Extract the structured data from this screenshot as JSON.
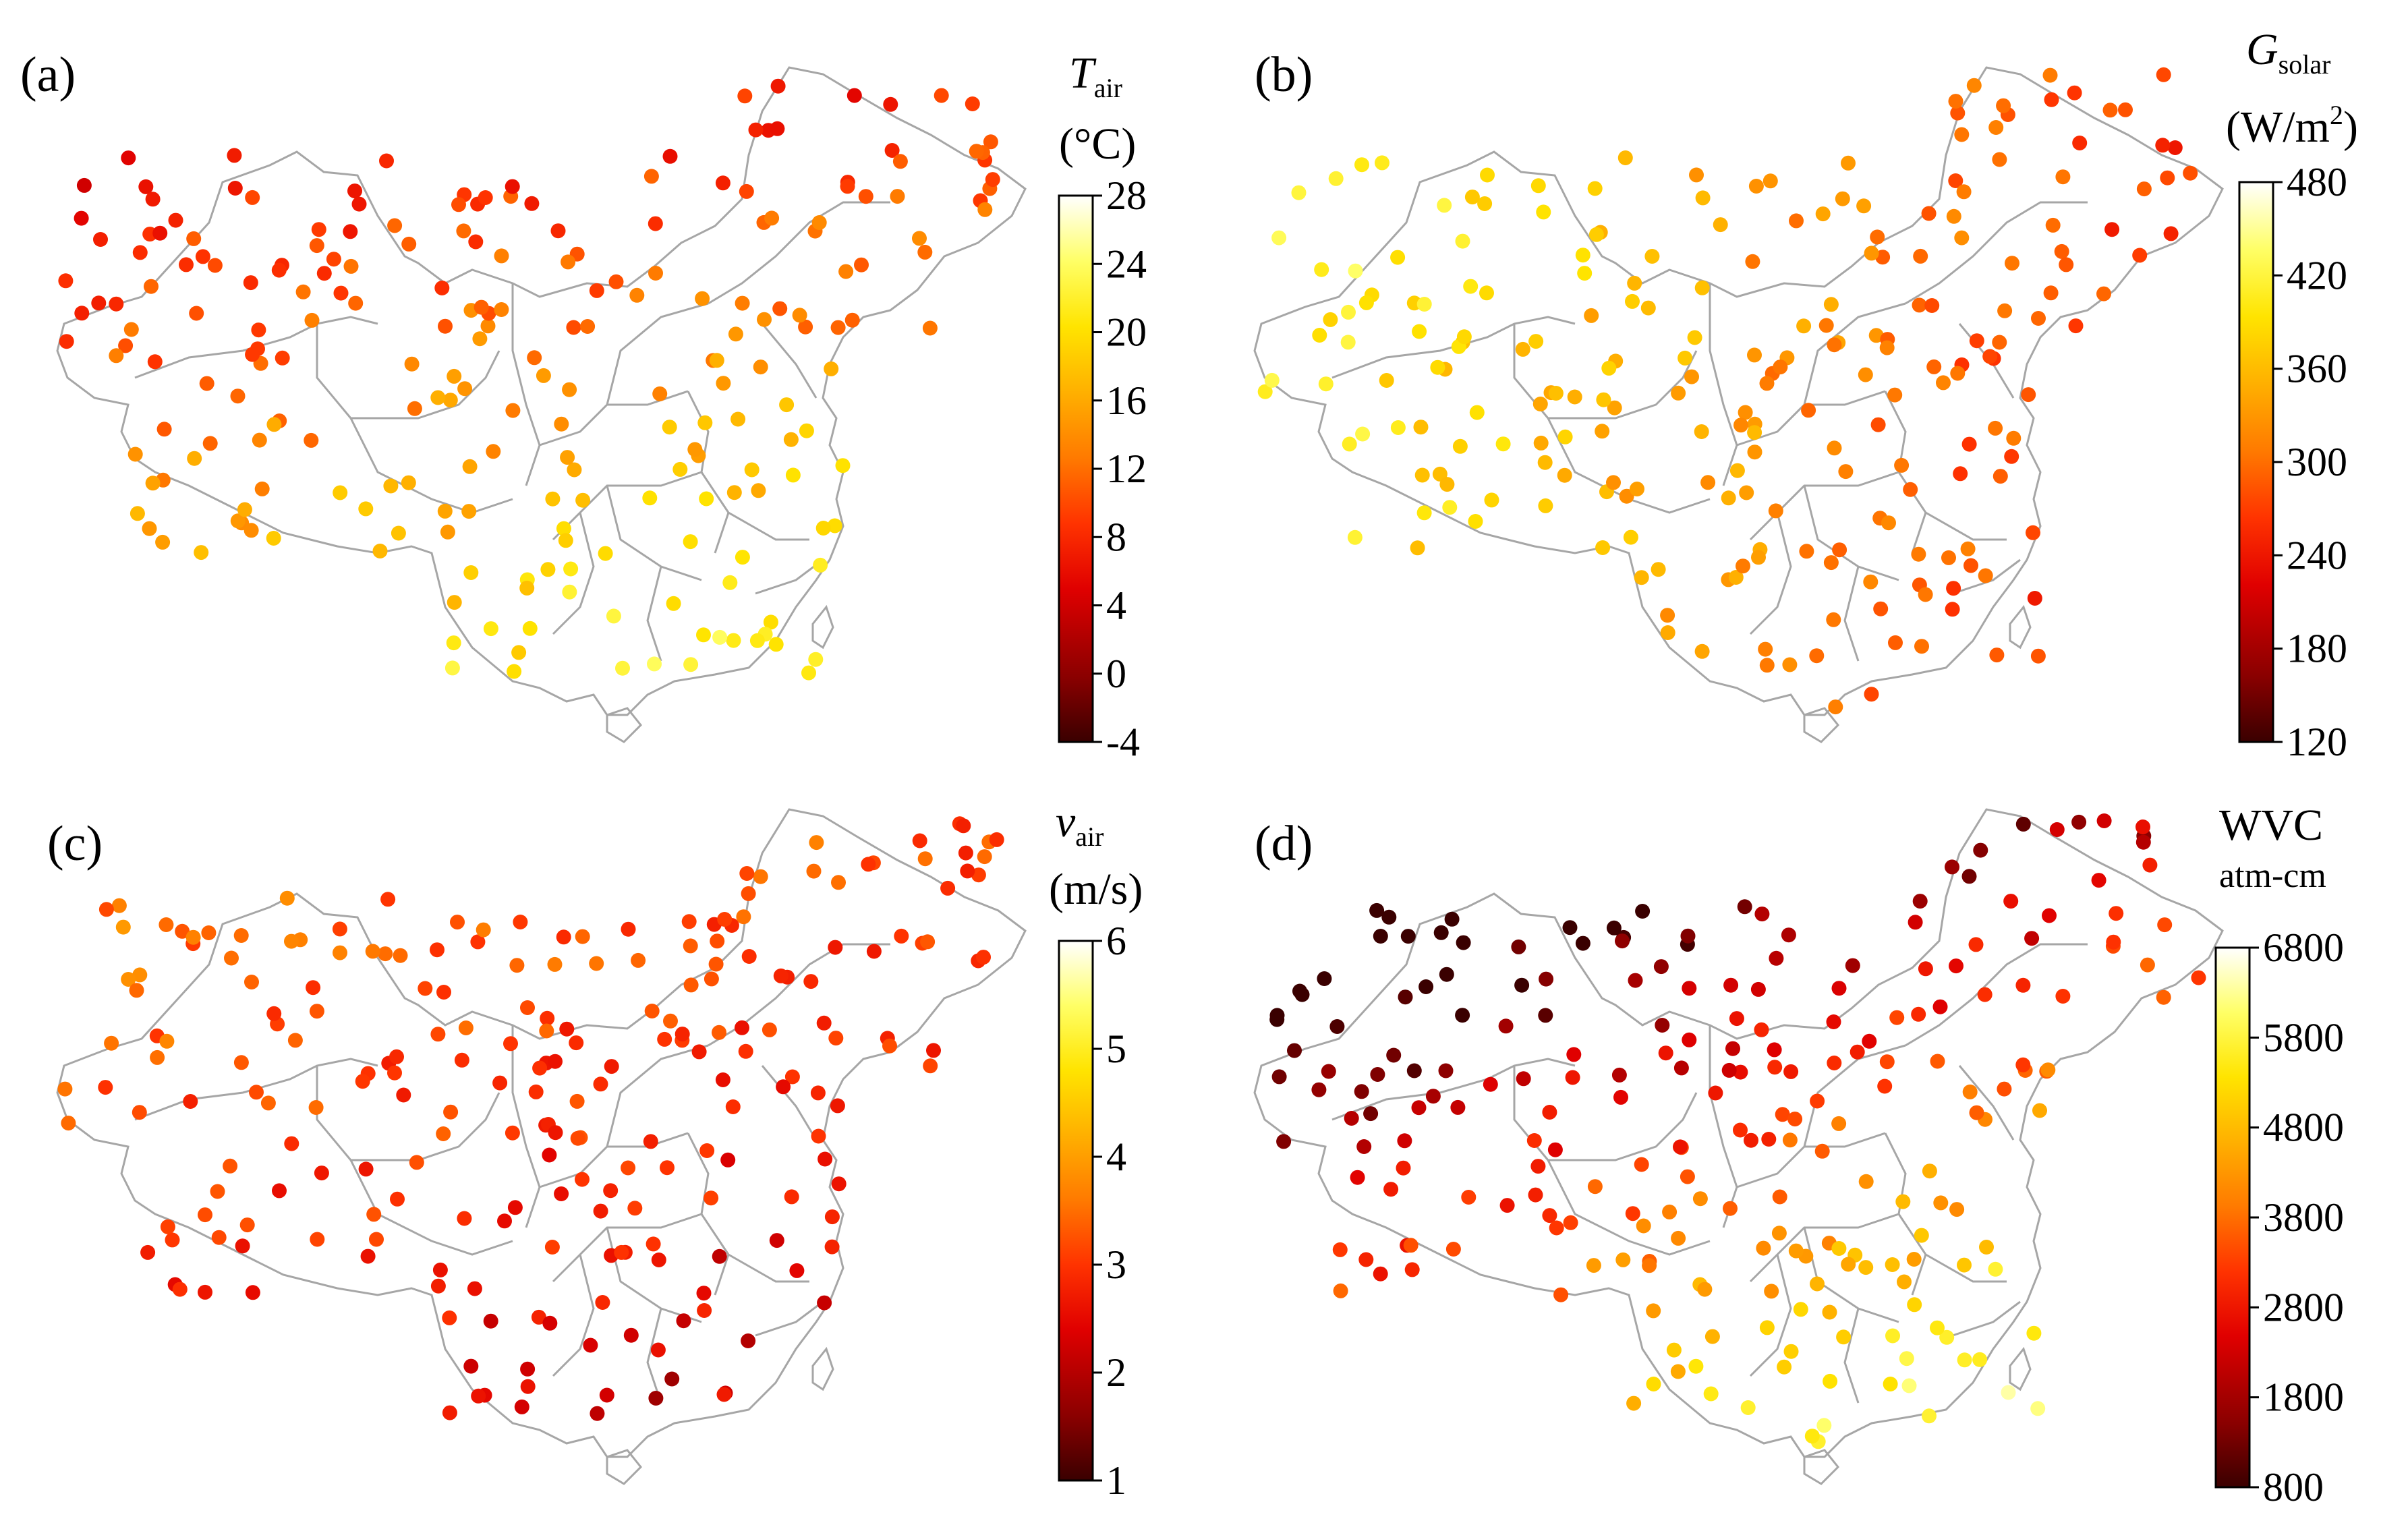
{
  "panels": [
    {
      "letter": "(a)",
      "colorbar": {
        "title_main": "T",
        "title_sub": "air",
        "title_unit": "(°C)",
        "ticks": [
          "28",
          "24",
          "20",
          "16",
          "12",
          "8",
          "4",
          "0",
          "-4"
        ],
        "min": -4,
        "max": 28
      },
      "colormap": "hot"
    },
    {
      "letter": "(b)",
      "colorbar": {
        "title_main": "G",
        "title_sub": "solar",
        "title_unit_pre": "(W/m",
        "title_unit_sup": "2",
        "title_unit_post": ")",
        "ticks": [
          "480",
          "420",
          "360",
          "300",
          "240",
          "180",
          "120"
        ],
        "min": 120,
        "max": 480
      },
      "colormap": "hot"
    },
    {
      "letter": "(c)",
      "colorbar": {
        "title_main": "v",
        "title_sub": "air",
        "title_unit": "(m/s)",
        "ticks": [
          "6",
          "5",
          "4",
          "3",
          "2",
          "1"
        ],
        "min": 1,
        "max": 6
      },
      "colormap": "hot"
    },
    {
      "letter": "(d)",
      "colorbar": {
        "title_main": "WVC",
        "title_unit": "atm-cm",
        "ticks": [
          "6800",
          "5800",
          "4800",
          "3800",
          "2800",
          "1800",
          "800"
        ],
        "min": 800,
        "max": 6800
      },
      "colormap": "hot"
    }
  ],
  "colors": {
    "boundary": "#a6a6a6",
    "colormap_stops": [
      "#3a0000",
      "#8b0000",
      "#e00000",
      "#ff3300",
      "#ff7a00",
      "#ffb000",
      "#ffe400",
      "#ffff66",
      "#ffffff"
    ]
  }
}
